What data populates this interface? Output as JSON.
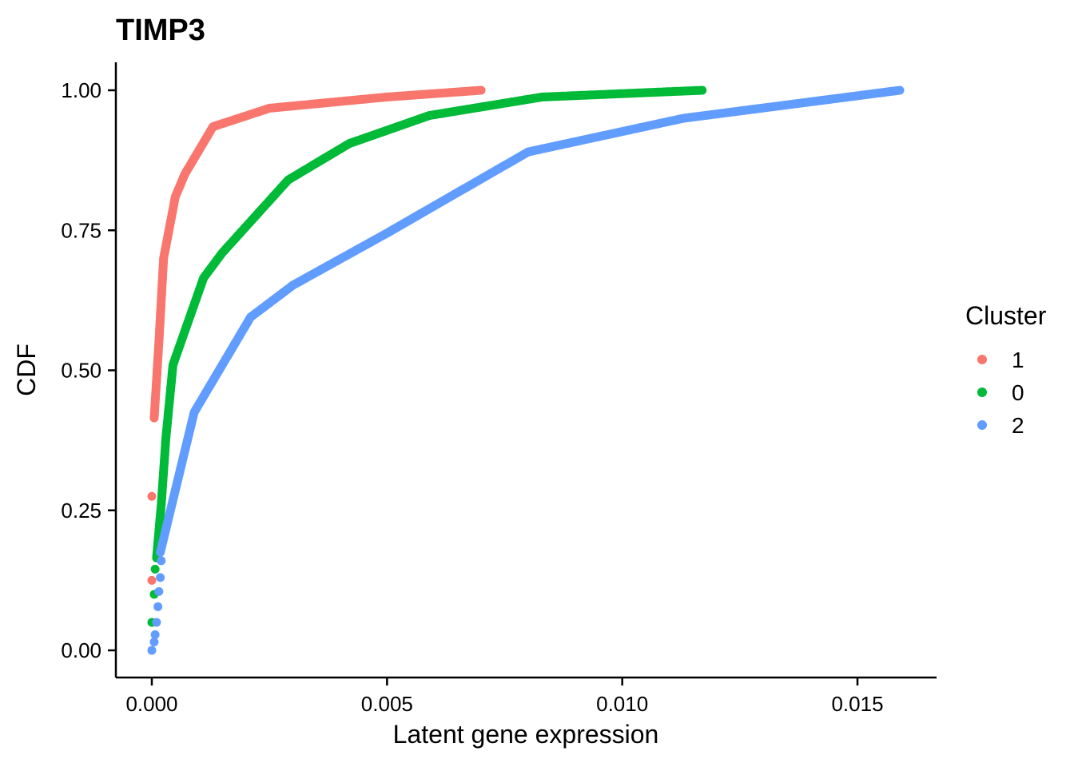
{
  "chart_data": {
    "type": "scatter",
    "title": "TIMP3",
    "xlabel": "Latent gene expression",
    "ylabel": "CDF",
    "xlim": [
      -0.0008,
      0.0167
    ],
    "ylim": [
      -0.05,
      1.05
    ],
    "x_ticks": [
      0,
      0.005,
      0.01,
      0.015
    ],
    "x_tick_labels": [
      "0.000",
      "0.005",
      "0.010",
      "0.015"
    ],
    "y_ticks": [
      0,
      0.25,
      0.5,
      0.75,
      1.0
    ],
    "y_tick_labels": [
      "0.00",
      "0.25",
      "0.50",
      "0.75",
      "1.00"
    ],
    "grid": false,
    "legend": {
      "title": "Cluster",
      "position": "right"
    },
    "series": [
      {
        "name": "1",
        "color": "#F8766D",
        "isolated": [
          [
            0,
            0.125
          ],
          [
            0,
            0.275
          ]
        ],
        "curve": [
          [
            5e-05,
            0.415
          ],
          [
            0.00015,
            0.55
          ],
          [
            0.00025,
            0.7
          ],
          [
            0.0005,
            0.81
          ],
          [
            0.0007,
            0.85
          ],
          [
            0.0013,
            0.935
          ],
          [
            0.0025,
            0.968
          ],
          [
            0.005,
            0.988
          ],
          [
            0.007,
            1.0
          ]
        ]
      },
      {
        "name": "0",
        "color": "#00BA38",
        "isolated": [
          [
            0,
            0.05
          ],
          [
            5e-05,
            0.1
          ],
          [
            7e-05,
            0.145
          ]
        ],
        "curve": [
          [
            0.0001,
            0.165
          ],
          [
            0.0002,
            0.26
          ],
          [
            0.0003,
            0.38
          ],
          [
            0.00045,
            0.51
          ],
          [
            0.0011,
            0.665
          ],
          [
            0.0015,
            0.71
          ],
          [
            0.0029,
            0.84
          ],
          [
            0.0042,
            0.905
          ],
          [
            0.0059,
            0.955
          ],
          [
            0.0083,
            0.988
          ],
          [
            0.0117,
            1.0
          ]
        ]
      },
      {
        "name": "2",
        "color": "#619CFF",
        "isolated": [
          [
            0,
            0.0
          ],
          [
            5e-05,
            0.015
          ],
          [
            7e-05,
            0.028
          ],
          [
            0.0001,
            0.05
          ],
          [
            0.00013,
            0.078
          ],
          [
            0.00015,
            0.105
          ],
          [
            0.00018,
            0.13
          ],
          [
            0.0002,
            0.16
          ]
        ],
        "curve": [
          [
            0.00018,
            0.175
          ],
          [
            0.0009,
            0.425
          ],
          [
            0.0021,
            0.595
          ],
          [
            0.003,
            0.652
          ],
          [
            0.005,
            0.745
          ],
          [
            0.008,
            0.89
          ],
          [
            0.0113,
            0.95
          ],
          [
            0.0159,
            1.0
          ]
        ]
      }
    ]
  }
}
